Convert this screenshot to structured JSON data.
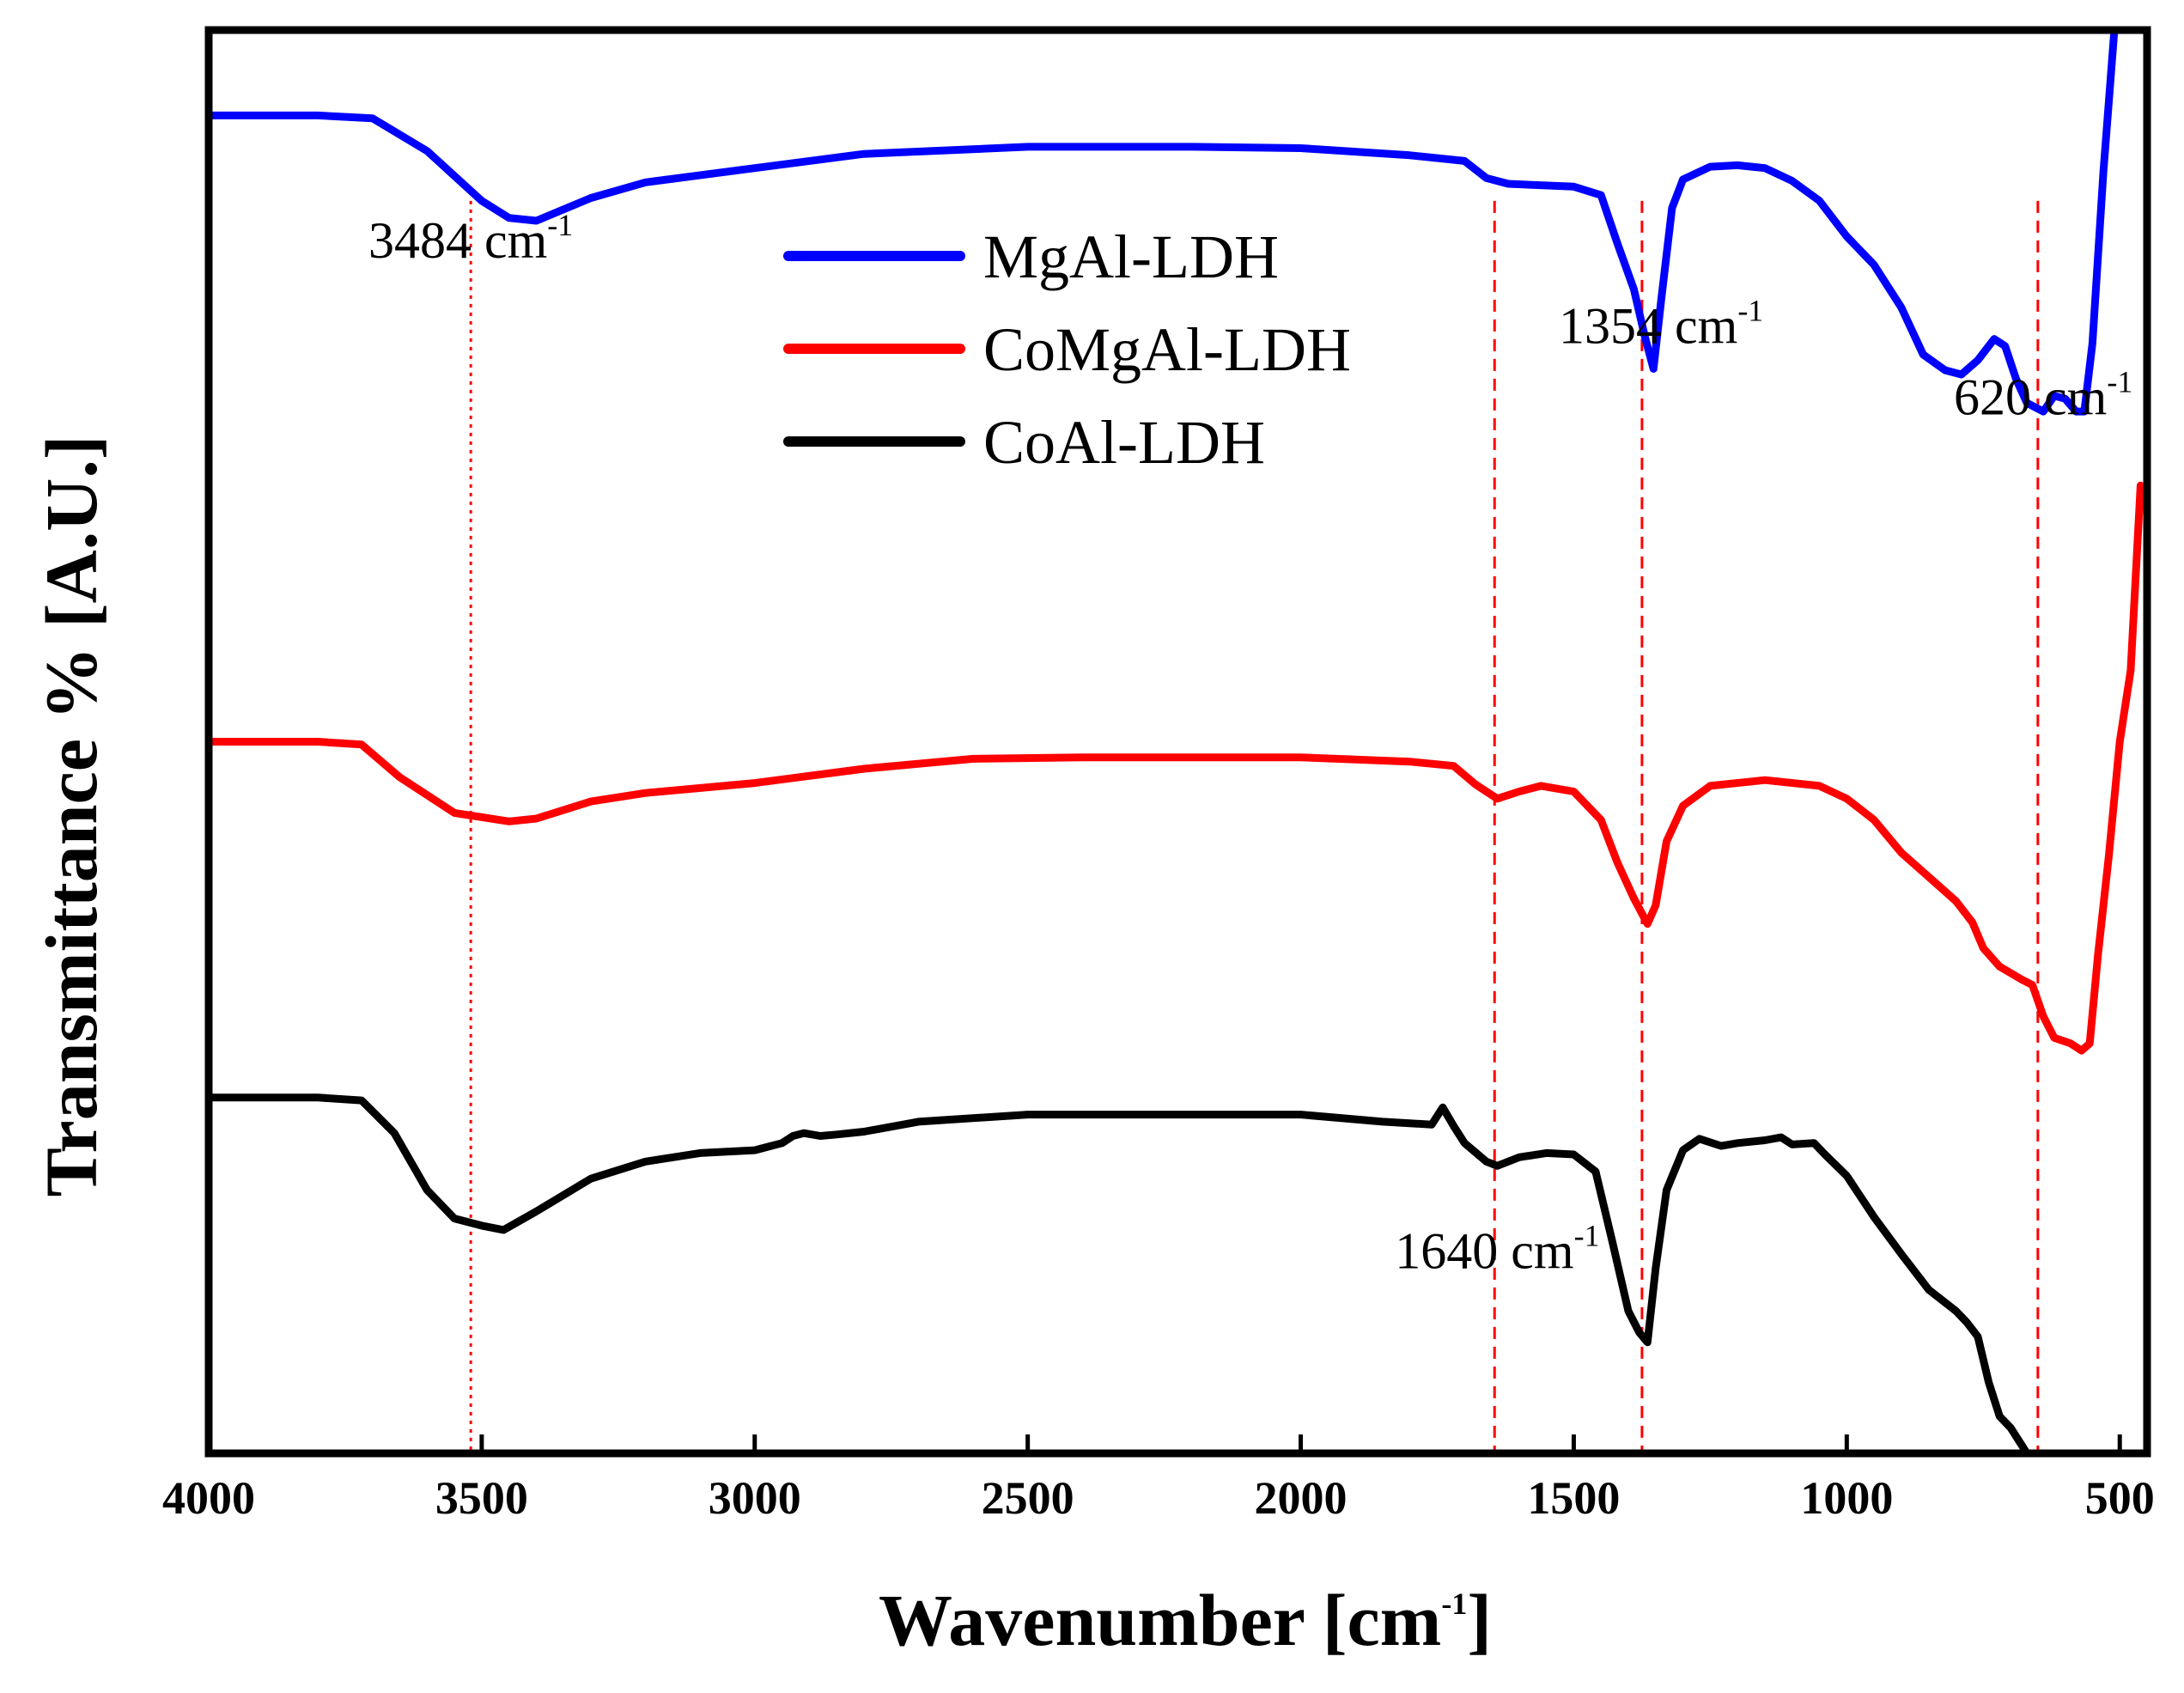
{
  "chart_data": {
    "type": "line",
    "title": "",
    "xlabel": "Wavenumber [cm",
    "xlabel_sup": "-1",
    "xlabel_suffix": "]",
    "ylabel": "Transmittance % [A.U.]",
    "xlim": [
      4000,
      450
    ],
    "ylim": [
      0,
      100
    ],
    "x_reversed": true,
    "grid": false,
    "legend_position": "top-center",
    "xticks": [
      4000,
      3500,
      3000,
      2500,
      2000,
      1500,
      1000,
      500
    ],
    "xtick_labels": [
      "4000",
      "3500",
      "3000",
      "2500",
      "2000",
      "1500",
      "1000",
      "500"
    ],
    "series": [
      {
        "name": "MgAl-LDH",
        "color": "#0000ff",
        "points": [
          [
            4000,
            94
          ],
          [
            3800,
            94
          ],
          [
            3700,
            93.8
          ],
          [
            3600,
            91.5
          ],
          [
            3500,
            88
          ],
          [
            3450,
            86.8
          ],
          [
            3400,
            86.6
          ],
          [
            3300,
            88.2
          ],
          [
            3200,
            89.3
          ],
          [
            3000,
            90.3
          ],
          [
            2800,
            91.3
          ],
          [
            2500,
            91.8
          ],
          [
            2200,
            91.8
          ],
          [
            2000,
            91.7
          ],
          [
            1800,
            91.2
          ],
          [
            1700,
            90.8
          ],
          [
            1660,
            89.6
          ],
          [
            1620,
            89.2
          ],
          [
            1500,
            89
          ],
          [
            1450,
            88.4
          ],
          [
            1420,
            85
          ],
          [
            1390,
            81.8
          ],
          [
            1370,
            78.5
          ],
          [
            1354,
            76.2
          ],
          [
            1340,
            81
          ],
          [
            1320,
            87.5
          ],
          [
            1300,
            89.5
          ],
          [
            1250,
            90.4
          ],
          [
            1200,
            90.5
          ],
          [
            1150,
            90.3
          ],
          [
            1100,
            89.4
          ],
          [
            1050,
            88
          ],
          [
            1000,
            85.5
          ],
          [
            950,
            83.5
          ],
          [
            900,
            80.5
          ],
          [
            860,
            77.2
          ],
          [
            820,
            76.1
          ],
          [
            790,
            75.8
          ],
          [
            760,
            76.8
          ],
          [
            730,
            78.3
          ],
          [
            710,
            77.8
          ],
          [
            690,
            75.5
          ],
          [
            670,
            73.8
          ],
          [
            640,
            73.2
          ],
          [
            620,
            74.3
          ],
          [
            600,
            74.1
          ],
          [
            580,
            73.2
          ],
          [
            565,
            73.2
          ],
          [
            550,
            78
          ],
          [
            530,
            90
          ],
          [
            510,
            100
          ]
        ]
      },
      {
        "name": "CoMgAl-LDH",
        "color": "#ff0000",
        "points": [
          [
            4000,
            50
          ],
          [
            3800,
            50
          ],
          [
            3720,
            49.8
          ],
          [
            3650,
            47.5
          ],
          [
            3550,
            45
          ],
          [
            3450,
            44.4
          ],
          [
            3400,
            44.6
          ],
          [
            3300,
            45.8
          ],
          [
            3200,
            46.4
          ],
          [
            3000,
            47.1
          ],
          [
            2800,
            48.1
          ],
          [
            2600,
            48.8
          ],
          [
            2400,
            48.9
          ],
          [
            2200,
            48.9
          ],
          [
            2000,
            48.9
          ],
          [
            1800,
            48.6
          ],
          [
            1720,
            48.3
          ],
          [
            1680,
            47
          ],
          [
            1640,
            46
          ],
          [
            1600,
            46.5
          ],
          [
            1560,
            46.9
          ],
          [
            1500,
            46.5
          ],
          [
            1450,
            44.5
          ],
          [
            1420,
            41.5
          ],
          [
            1390,
            39
          ],
          [
            1365,
            37.2
          ],
          [
            1350,
            38.5
          ],
          [
            1330,
            43
          ],
          [
            1300,
            45.5
          ],
          [
            1250,
            46.9
          ],
          [
            1150,
            47.3
          ],
          [
            1050,
            46.9
          ],
          [
            1000,
            46
          ],
          [
            950,
            44.5
          ],
          [
            900,
            42.2
          ],
          [
            850,
            40.5
          ],
          [
            800,
            38.8
          ],
          [
            770,
            37.3
          ],
          [
            750,
            35.5
          ],
          [
            720,
            34.2
          ],
          [
            680,
            33.3
          ],
          [
            660,
            32.9
          ],
          [
            640,
            30.7
          ],
          [
            620,
            29.2
          ],
          [
            590,
            28.8
          ],
          [
            570,
            28.3
          ],
          [
            555,
            28.8
          ],
          [
            540,
            35
          ],
          [
            520,
            42
          ],
          [
            500,
            50
          ],
          [
            480,
            55
          ],
          [
            462,
            68
          ]
        ]
      },
      {
        "name": "CoAl-LDH",
        "color": "#000000",
        "points": [
          [
            4000,
            25
          ],
          [
            3800,
            25
          ],
          [
            3720,
            24.8
          ],
          [
            3660,
            22.5
          ],
          [
            3600,
            18.5
          ],
          [
            3550,
            16.5
          ],
          [
            3500,
            16
          ],
          [
            3460,
            15.7
          ],
          [
            3400,
            17
          ],
          [
            3300,
            19.3
          ],
          [
            3200,
            20.5
          ],
          [
            3100,
            21.1
          ],
          [
            3000,
            21.3
          ],
          [
            2950,
            21.8
          ],
          [
            2930,
            22.3
          ],
          [
            2910,
            22.5
          ],
          [
            2880,
            22.3
          ],
          [
            2850,
            22.4
          ],
          [
            2800,
            22.6
          ],
          [
            2700,
            23.3
          ],
          [
            2500,
            23.8
          ],
          [
            2200,
            23.8
          ],
          [
            2000,
            23.8
          ],
          [
            1850,
            23.3
          ],
          [
            1760,
            23.1
          ],
          [
            1740,
            24.3
          ],
          [
            1720,
            23
          ],
          [
            1700,
            21.8
          ],
          [
            1660,
            20.5
          ],
          [
            1640,
            20.2
          ],
          [
            1600,
            20.8
          ],
          [
            1550,
            21.1
          ],
          [
            1500,
            21
          ],
          [
            1460,
            19.8
          ],
          [
            1430,
            15
          ],
          [
            1400,
            10
          ],
          [
            1380,
            8.5
          ],
          [
            1365,
            7.8
          ],
          [
            1350,
            13
          ],
          [
            1330,
            18.5
          ],
          [
            1300,
            21.3
          ],
          [
            1270,
            22.1
          ],
          [
            1230,
            21.6
          ],
          [
            1200,
            21.8
          ],
          [
            1150,
            22
          ],
          [
            1120,
            22.2
          ],
          [
            1100,
            21.7
          ],
          [
            1060,
            21.8
          ],
          [
            1040,
            21
          ],
          [
            1000,
            19.5
          ],
          [
            950,
            16.6
          ],
          [
            900,
            14
          ],
          [
            850,
            11.5
          ],
          [
            800,
            10
          ],
          [
            780,
            9.2
          ],
          [
            760,
            8.2
          ],
          [
            740,
            5
          ],
          [
            720,
            2.6
          ],
          [
            700,
            1.8
          ],
          [
            680,
            0.6
          ],
          [
            670,
            0
          ]
        ]
      }
    ],
    "reference_lines": [
      {
        "x": 3520,
        "style": "dotted",
        "color": "#ff0000"
      },
      {
        "x": 1645,
        "style": "dashed",
        "color": "#ff0000"
      },
      {
        "x": 1375,
        "style": "dashed",
        "color": "#ff0000"
      },
      {
        "x": 650,
        "style": "dashed",
        "color": "#ff0000"
      }
    ],
    "annotations": [
      {
        "value": "3484 cm",
        "sup": "-1",
        "x": 3520,
        "y": 84
      },
      {
        "value": "1354 cm",
        "sup": "-1",
        "x": 1340,
        "y": 78
      },
      {
        "value": "620 cm",
        "sup": "-1",
        "x": 640,
        "y": 73
      },
      {
        "value": "1640 cm",
        "sup": "-1",
        "x": 1640,
        "y": 13
      }
    ]
  }
}
